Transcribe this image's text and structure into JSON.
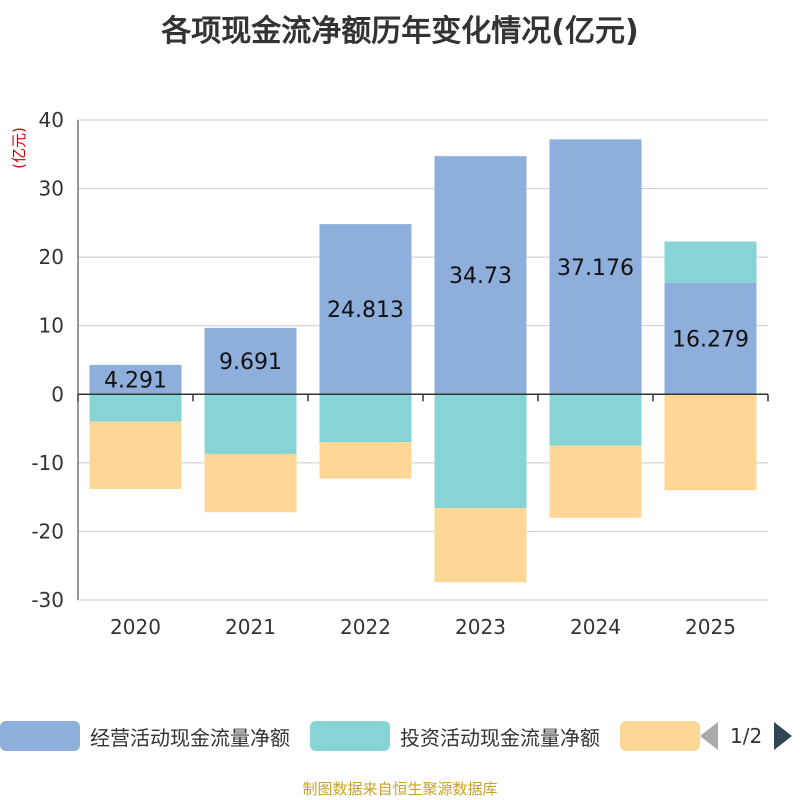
{
  "chart_data": {
    "type": "bar",
    "stacked": true,
    "title": "各项现金流净额历年变化情况(亿元)",
    "ylabel": "(亿元)",
    "xlabel": "",
    "ylim": [
      -30,
      40
    ],
    "yticks": [
      40,
      30,
      20,
      10,
      0,
      -10,
      -20,
      -30
    ],
    "categories": [
      "2020",
      "2021",
      "2022",
      "2023",
      "2024",
      "2025"
    ],
    "series": [
      {
        "name": "经营活动现金流量净额",
        "color": "#8eaedb",
        "values": [
          4.291,
          9.691,
          24.813,
          34.73,
          37.176,
          16.279
        ],
        "labels": [
          "4.291",
          "9.691",
          "24.813",
          "34.73",
          "37.176",
          "16.279"
        ]
      },
      {
        "name": "投资活动现金流量净额",
        "color": "#86d4d6",
        "values": [
          -4.0,
          -8.7,
          -7.0,
          -16.6,
          -7.5,
          6.0
        ]
      },
      {
        "name": "",
        "color": "#fed796",
        "values": [
          -9.8,
          -8.5,
          -5.3,
          -10.8,
          -10.5,
          -14.0
        ]
      }
    ],
    "legend_position": "bottom",
    "grid": true
  },
  "legend": {
    "page_text": "1/2"
  },
  "source_note": "制图数据来自恒生聚源数据库"
}
